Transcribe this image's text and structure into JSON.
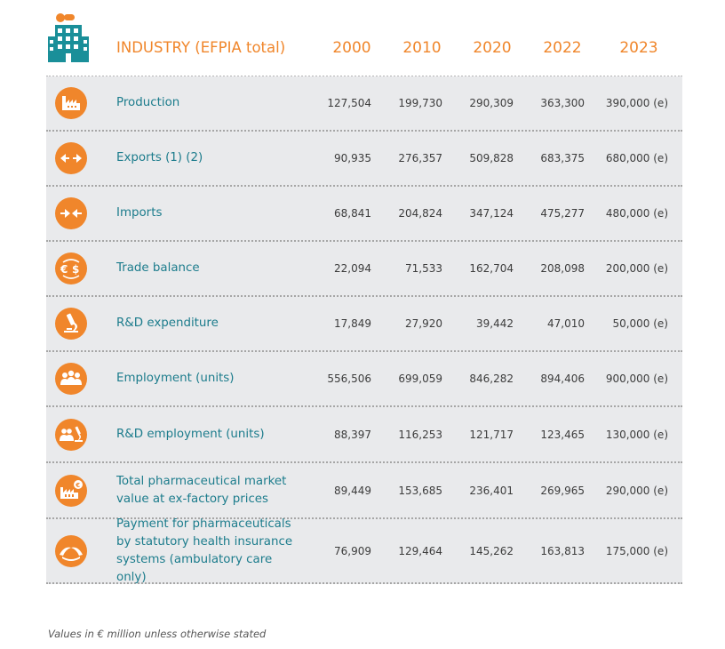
{
  "header": {
    "title": "INDUSTRY (EFPIA total)",
    "years": [
      "2000",
      "2010",
      "2020",
      "2022",
      "2023"
    ]
  },
  "rows": [
    {
      "icon": "factory-icon",
      "label": "Production",
      "values": [
        "127,504",
        "199,730",
        "290,309",
        "363,300",
        "390,000 (e)"
      ]
    },
    {
      "icon": "exports-arrows-icon",
      "label": "Exports (1) (2)",
      "values": [
        "90,935",
        "276,357",
        "509,828",
        "683,375",
        "680,000 (e)"
      ]
    },
    {
      "icon": "imports-arrows-icon",
      "label": "Imports",
      "values": [
        "68,841",
        "204,824",
        "347,124",
        "475,277",
        "480,000 (e)"
      ]
    },
    {
      "icon": "currency-exchange-icon",
      "label": "Trade balance",
      "values": [
        "22,094",
        "71,533",
        "162,704",
        "208,098",
        "200,000 (e)"
      ]
    },
    {
      "icon": "microscope-icon",
      "label": "R&D expenditure",
      "values": [
        "17,849",
        "27,920",
        "39,442",
        "47,010",
        "50,000 (e)"
      ]
    },
    {
      "icon": "people-icon",
      "label": "Employment (units)",
      "values": [
        "556,506",
        "699,059",
        "846,282",
        "894,406",
        "900,000 (e)"
      ]
    },
    {
      "icon": "people-microscope-icon",
      "label": "R&D employment (units)",
      "values": [
        "88,397",
        "116,253",
        "121,717",
        "123,465",
        "130,000 (e)"
      ]
    },
    {
      "icon": "factory-euro-icon",
      "label": "Total pharmaceutical market value at ex-factory prices",
      "values": [
        "89,449",
        "153,685",
        "236,401",
        "269,965",
        "290,000 (e)"
      ]
    },
    {
      "icon": "hands-icon",
      "label": "Payment for pharmaceuticals by statutory health insurance systems (ambulatory care only)",
      "values": [
        "76,909",
        "129,464",
        "145,262",
        "163,813",
        "175,000 (e)"
      ]
    }
  ],
  "footnote": "Values in € million unless otherwise stated",
  "colors": {
    "accent": "#f0862b",
    "label": "#1c7c8c",
    "table_bg": "#e9eaec",
    "building": "#1a8f99"
  }
}
